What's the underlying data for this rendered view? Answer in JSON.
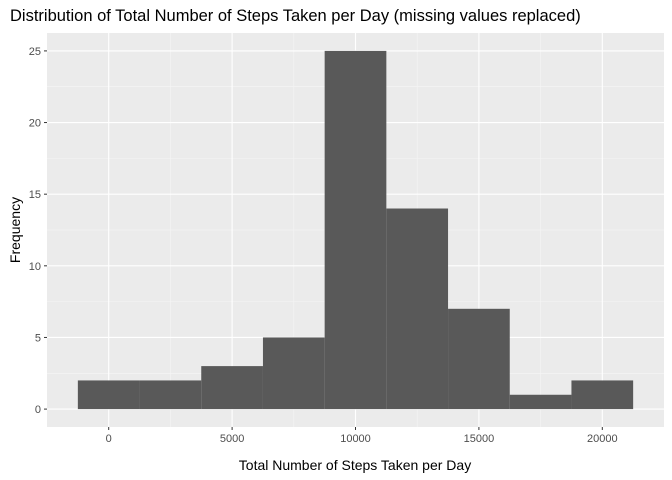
{
  "chart_data": {
    "type": "bar",
    "subtype": "histogram",
    "title": "Distribution of Total Number of Steps Taken per Day (missing values replaced)",
    "xlabel": "Total Number of Steps Taken per Day",
    "ylabel": "Frequency",
    "xlim": [
      -2500,
      22500
    ],
    "ylim": [
      -1.25,
      26.25
    ],
    "x_ticks": [
      0,
      5000,
      10000,
      15000,
      20000
    ],
    "y_ticks": [
      0,
      5,
      10,
      15,
      20,
      25
    ],
    "bins": [
      {
        "x0": -1250,
        "x1": 1250,
        "count": 2
      },
      {
        "x0": 1250,
        "x1": 3750,
        "count": 2
      },
      {
        "x0": 3750,
        "x1": 6250,
        "count": 3
      },
      {
        "x0": 6250,
        "x1": 8750,
        "count": 5
      },
      {
        "x0": 8750,
        "x1": 11250,
        "count": 25
      },
      {
        "x0": 11250,
        "x1": 13750,
        "count": 14
      },
      {
        "x0": 13750,
        "x1": 16250,
        "count": 7
      },
      {
        "x0": 16250,
        "x1": 18750,
        "count": 1
      },
      {
        "x0": 18750,
        "x1": 21250,
        "count": 2
      }
    ],
    "grid": true,
    "colors": {
      "bar": "#595959",
      "panel": "#ebebeb",
      "grid_major": "#ffffff",
      "grid_minor": "#f5f5f5"
    }
  }
}
